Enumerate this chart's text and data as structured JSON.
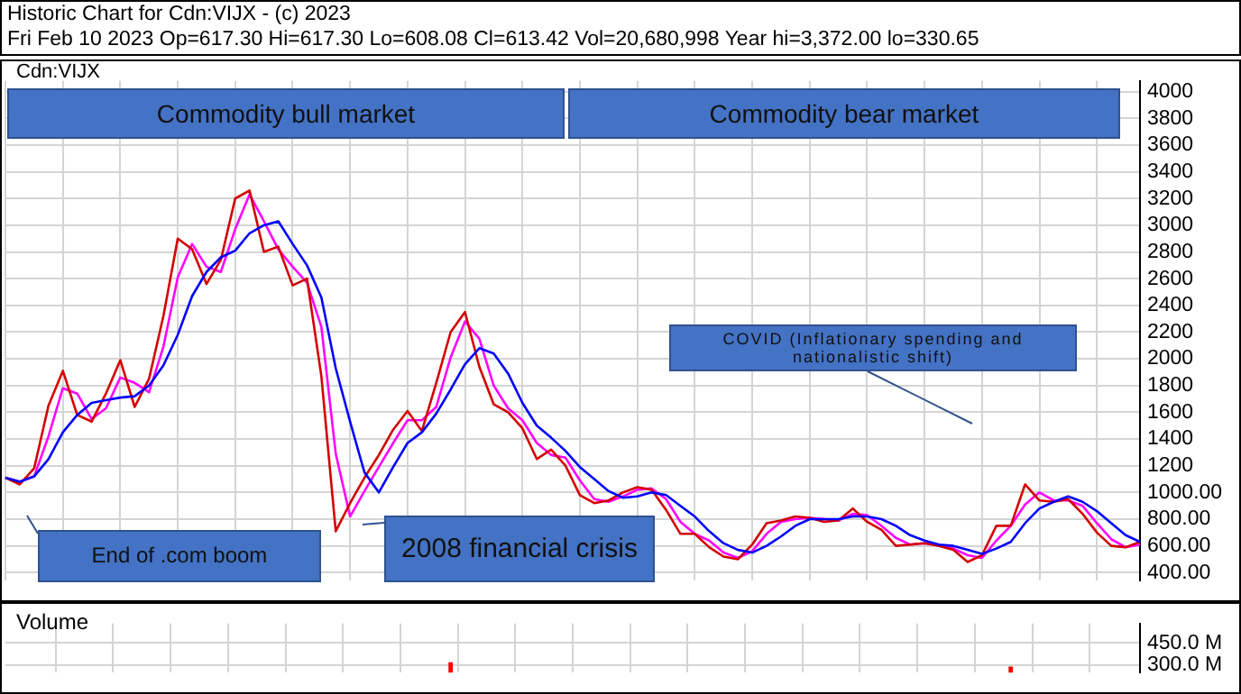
{
  "chart_data": [
    {
      "type": "line",
      "title": "Historic Chart for Cdn:VIJX - (c) 2023",
      "subtitle": "Fri Feb 10 2023  Op=617.30  Hi=617.30  Lo=608.08  Cl=613.42  Vol=20,680,998  Year hi=3,372.00  lo=330.65",
      "annotations": [
        "Cdn:VIJX",
        "Commodity bull market",
        "Commodity bear market",
        "End of .com boom",
        "2008 financial crisis",
        "COVID (Inflationary spending and nationalistic shift)"
      ],
      "categories": [
        null,
        null,
        null,
        null,
        null,
        null,
        null,
        null,
        null,
        null,
        null,
        null,
        null,
        null,
        null,
        null,
        null,
        null,
        null,
        null,
        null,
        null,
        null,
        null,
        null,
        null,
        null,
        null,
        null,
        null,
        null,
        null,
        null,
        null,
        null,
        null,
        null,
        null,
        null,
        null,
        null,
        null,
        null,
        null,
        null,
        null,
        null,
        null,
        null,
        null,
        null,
        null,
        null,
        null,
        null,
        null,
        null,
        null,
        null,
        null,
        null,
        null,
        null,
        null,
        null,
        null,
        null,
        null,
        null,
        null,
        null,
        null,
        null,
        null,
        null,
        null,
        null,
        null,
        null,
        null
      ],
      "series": [
        {
          "color": "#0000ff",
          "values": [
            1110,
            1080,
            1120,
            1250,
            1450,
            1580,
            1670,
            1690,
            1710,
            1720,
            1800,
            1950,
            2180,
            2470,
            2650,
            2760,
            2810,
            2940,
            3000,
            3030,
            2860,
            2700,
            2460,
            1930,
            1530,
            1150,
            1000,
            1190,
            1370,
            1450,
            1590,
            1770,
            1960,
            2080,
            2040,
            1890,
            1670,
            1500,
            1410,
            1310,
            1190,
            1100,
            1010,
            960,
            970,
            1000,
            980,
            900,
            820,
            710,
            620,
            570,
            550,
            600,
            670,
            750,
            800,
            800,
            800,
            820,
            820,
            800,
            750,
            680,
            640,
            610,
            600,
            570,
            540,
            580,
            630,
            770,
            880,
            930,
            970,
            930,
            860,
            770,
            680,
            630
          ]
        },
        {
          "color": "#d40000",
          "values": [
            1110,
            1060,
            1180,
            1650,
            1910,
            1580,
            1530,
            1740,
            1990,
            1640,
            1850,
            2320,
            2900,
            2820,
            2560,
            2740,
            3200,
            3260,
            2800,
            2840,
            2550,
            2600,
            1870,
            710,
            920,
            1110,
            1280,
            1470,
            1610,
            1460,
            1820,
            2200,
            2350,
            1940,
            1660,
            1600,
            1480,
            1250,
            1320,
            1200,
            980,
            920,
            940,
            1000,
            1040,
            1020,
            870,
            690,
            690,
            590,
            520,
            500,
            610,
            770,
            790,
            820,
            810,
            780,
            790,
            880,
            780,
            720,
            600,
            610,
            620,
            600,
            570,
            480,
            530,
            750,
            750,
            1060,
            940,
            930,
            950,
            840,
            700,
            600,
            590,
            630
          ]
        },
        {
          "color": "#ff00ff",
          "values": [
            1110,
            1080,
            1120,
            1420,
            1780,
            1740,
            1550,
            1630,
            1860,
            1820,
            1750,
            2090,
            2610,
            2860,
            2690,
            2650,
            2970,
            3230,
            3030,
            2820,
            2690,
            2570,
            2240,
            1290,
            820,
            1010,
            1190,
            1370,
            1540,
            1540,
            1640,
            2010,
            2280,
            2150,
            1800,
            1630,
            1540,
            1370,
            1280,
            1260,
            1090,
            950,
            930,
            970,
            1020,
            1030,
            950,
            780,
            690,
            640,
            550,
            510,
            560,
            690,
            780,
            800,
            810,
            800,
            790,
            840,
            830,
            750,
            660,
            610,
            620,
            610,
            580,
            530,
            510,
            640,
            750,
            910,
            1000,
            940,
            940,
            900,
            770,
            650,
            590,
            610
          ]
        }
      ],
      "ylim": [
        340,
        4080
      ],
      "yticks": [
        4000,
        3800,
        3600,
        3400,
        3200,
        3000,
        2800,
        2600,
        2400,
        2200,
        2000,
        1800,
        1600,
        1400,
        1200,
        {
          "value": 1000,
          "label": "1000.00"
        },
        {
          "value": 800,
          "label": "800.00"
        },
        {
          "value": 600,
          "label": "600.00"
        },
        {
          "value": 400,
          "label": "400.00"
        }
      ],
      "grid": true,
      "marker": "none",
      "tick_labels": "y"
    },
    {
      "type": "bar",
      "title": "Volume",
      "categories": [
        null,
        null,
        null,
        null,
        null,
        null,
        null,
        null,
        null,
        null,
        null,
        null,
        null,
        null,
        null,
        null,
        null,
        null,
        null,
        null,
        null,
        null,
        null,
        null,
        null,
        null,
        null,
        null,
        null,
        null,
        null,
        null,
        null,
        null,
        null,
        null,
        null,
        null,
        null,
        null,
        null,
        null,
        null,
        null,
        null,
        null,
        null,
        null,
        null,
        null,
        null,
        null,
        null,
        null,
        null,
        null,
        null,
        null,
        null,
        null,
        null,
        null,
        null,
        null,
        null,
        null,
        null,
        null,
        null,
        null,
        null,
        null,
        null,
        null,
        null,
        null,
        null,
        null,
        null,
        null
      ],
      "values": [
        null,
        null,
        null,
        null,
        null,
        null,
        null,
        null,
        null,
        null,
        null,
        null,
        null,
        null,
        null,
        null,
        null,
        null,
        null,
        null,
        null,
        null,
        null,
        null,
        null,
        null,
        null,
        null,
        null,
        null,
        null,
        320,
        null,
        null,
        null,
        null,
        null,
        null,
        null,
        null,
        null,
        null,
        null,
        null,
        null,
        null,
        null,
        null,
        null,
        null,
        null,
        null,
        null,
        null,
        null,
        null,
        null,
        null,
        null,
        null,
        null,
        null,
        null,
        null,
        null,
        null,
        null,
        null,
        null,
        null,
        290,
        null,
        null,
        null,
        null,
        null,
        null,
        null,
        null,
        null
      ],
      "colors": [
        "#ff0000",
        "#ff0000",
        "#ff0000",
        "#ff0000",
        "#ff0000",
        "#ff0000",
        "#ff0000",
        "#ff0000",
        "#ff0000",
        "#ff0000",
        "#ff0000",
        "#ff0000",
        "#ff0000",
        "#ff0000",
        "#ff0000",
        "#ff0000",
        "#ff0000",
        "#ff0000",
        "#ff0000",
        "#ff0000",
        "#ff0000",
        "#ff0000",
        "#ff0000",
        "#ff0000",
        "#ff0000",
        "#ff0000",
        "#ff0000",
        "#ff0000",
        "#ff0000",
        "#ff0000",
        "#ff0000",
        "#ff0000",
        "#ff0000",
        "#ff0000",
        "#ff0000",
        "#ff0000",
        "#ff0000",
        "#ff0000",
        "#ff0000",
        "#ff0000",
        "#ff0000",
        "#ff0000",
        "#ff0000",
        "#ff0000",
        "#ff0000",
        "#ff0000",
        "#ff0000",
        "#ff0000",
        "#ff0000",
        "#ff0000",
        "#ff0000",
        "#ff0000",
        "#ff0000",
        "#ff0000",
        "#ff0000",
        "#ff0000",
        "#ff0000",
        "#ff0000",
        "#ff0000",
        "#ff0000",
        "#ff0000",
        "#ff0000",
        "#ff0000",
        "#ff0000",
        "#ff0000",
        "#ff0000",
        "#ff0000",
        "#ff0000",
        "#ff0000",
        "#ff0000",
        "#ff0000",
        "#ff0000",
        "#ff0000",
        "#ff0000",
        "#ff0000",
        "#ff0000",
        "#ff0000",
        "#ff0000",
        "#ff0000",
        "#ff0000"
      ],
      "ylim": [
        250,
        580
      ],
      "yticks": [
        {
          "value": 450,
          "label": "450.0 M"
        },
        {
          "value": 300,
          "label": "300.0 M"
        }
      ],
      "grid": true,
      "tick_labels": "y"
    }
  ]
}
